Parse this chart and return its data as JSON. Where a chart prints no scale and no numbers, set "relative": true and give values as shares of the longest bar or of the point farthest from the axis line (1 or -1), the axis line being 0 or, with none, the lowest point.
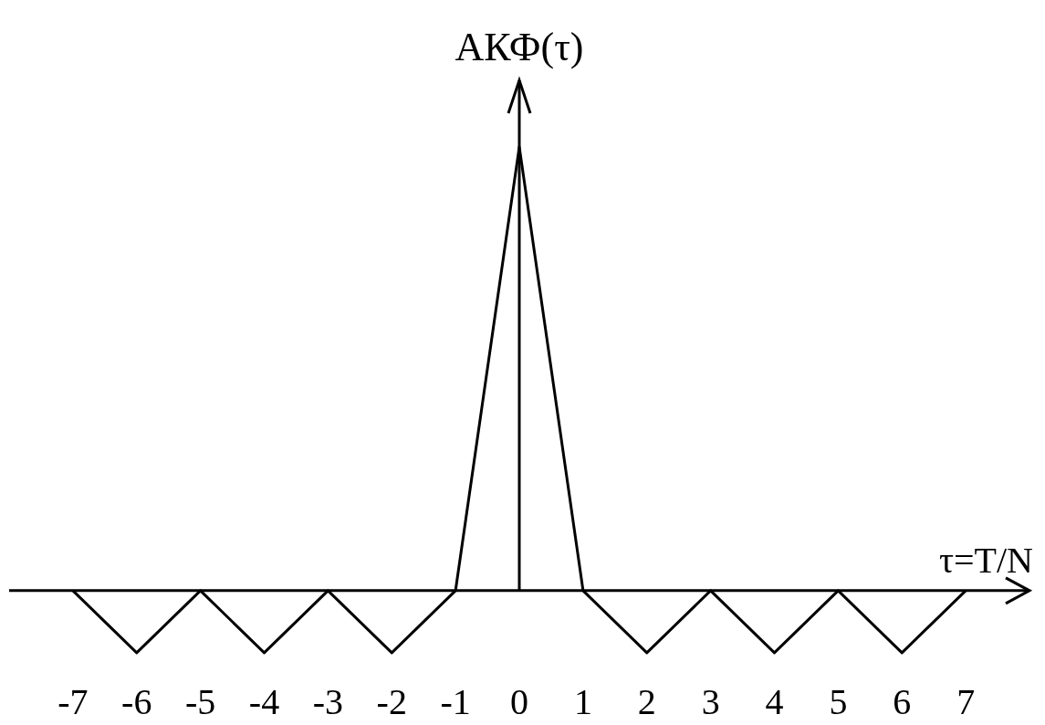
{
  "chart_data": {
    "type": "line",
    "relative": true,
    "xlabel": "τ=T/N",
    "ylabel": "АКФ(τ)",
    "color": "#000000",
    "x": [
      -7,
      -6,
      -5,
      -4,
      -3,
      -2,
      -1,
      0,
      1,
      2,
      3,
      4,
      5,
      6,
      7
    ],
    "values": [
      0,
      -0.14,
      0,
      -0.14,
      0,
      -0.14,
      0,
      1,
      0,
      -0.14,
      0,
      -0.14,
      0,
      -0.14,
      0
    ],
    "xlim": [
      -8,
      8
    ],
    "xticks": [
      -7,
      -6,
      -5,
      -4,
      -3,
      -2,
      -1,
      0,
      1,
      2,
      3,
      4,
      5,
      6,
      7
    ]
  }
}
